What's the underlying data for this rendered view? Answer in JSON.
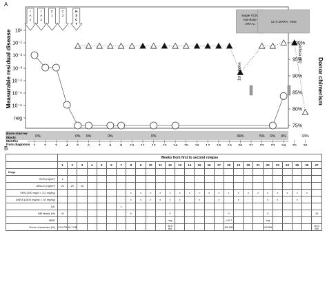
{
  "panels": {
    "a": "A",
    "b": "B"
  },
  "chart_data": {
    "type": "line",
    "title": "",
    "xlabel": "Months from diagnosis",
    "ylabel": "Measurable residual disease",
    "ylabel_right": "Donor chimerism",
    "x_ticks": [
      1,
      2,
      3,
      4,
      5,
      6,
      7,
      8,
      9,
      10,
      11,
      12,
      13,
      14,
      15,
      16,
      17,
      18,
      19,
      20,
      21,
      22,
      23,
      24,
      25,
      26
    ],
    "y_ticks_left": [
      "10¹",
      "10⁻¹",
      "10⁻²",
      "10⁻³",
      "10⁻⁴",
      "10⁻⁵",
      "10⁻⁶",
      "neg"
    ],
    "y_ticks_right": [
      "100%",
      "95%",
      "90%",
      "85%",
      "80%",
      "75%"
    ],
    "ylim_right": [
      75,
      100
    ],
    "series": [
      {
        "values": [
          {
            "x": 1,
            "y": "1e-2"
          },
          {
            "x": 2,
            "y": "1e-3"
          },
          {
            "x": 3,
            "y": "1e-3"
          },
          {
            "x": 4,
            "y": "1e-6"
          },
          {
            "x": 5,
            "y": "neg"
          },
          {
            "x": 6,
            "y": "neg"
          },
          {
            "x": 8,
            "y": "neg"
          },
          {
            "x": 9,
            "y": "neg"
          },
          {
            "x": 12,
            "y": "neg"
          },
          {
            "x": 14,
            "y": "neg"
          },
          {
            "x": 23,
            "y": "neg"
          },
          {
            "x": 24,
            "y": "5e-6"
          }
        ]
      },
      {
        "values": [
          {
            "x": 5,
            "y": 99,
            "filled": false
          },
          {
            "x": 6,
            "y": 99,
            "filled": false
          },
          {
            "x": 7,
            "y": 99,
            "filled": false
          },
          {
            "x": 8,
            "y": 99,
            "filled": false
          },
          {
            "x": 9,
            "y": 99,
            "filled": false
          },
          {
            "x": 10,
            "y": 99,
            "filled": false
          },
          {
            "x": 11,
            "y": 99,
            "filled": true
          },
          {
            "x": 12,
            "y": 99,
            "filled": false
          },
          {
            "x": 13,
            "y": 99,
            "filled": true
          },
          {
            "x": 14,
            "y": 99,
            "filled": false
          },
          {
            "x": 15,
            "y": 99,
            "filled": false
          },
          {
            "x": 16,
            "y": 99,
            "filled": true
          },
          {
            "x": 17,
            "y": 99,
            "filled": true
          },
          {
            "x": 18,
            "y": 99,
            "filled": true
          },
          {
            "x": 19,
            "y": 99,
            "filled": true
          },
          {
            "x": 20,
            "y": 91,
            "filled": true
          },
          {
            "x": 22,
            "y": 99,
            "filled": false
          },
          {
            "x": 23,
            "y": 99,
            "filled": false
          },
          {
            "x": 24,
            "y": 100,
            "filled": false
          },
          {
            "x": 25,
            "y": 100,
            "filled": true
          },
          {
            "x": 26,
            "y": 79,
            "filled": false
          }
        ]
      }
    ],
    "treatment_arrows": [
      {
        "x": 1,
        "label": "I A 1"
      },
      {
        "x": 2,
        "label": "I A 2"
      },
      {
        "x": 3,
        "label": "C 1"
      },
      {
        "x": 4,
        "label": "C 2"
      },
      {
        "x": 5,
        "label": "H S C T"
      }
    ],
    "treatment_boxes": [
      {
        "x_start": 20,
        "x_end": 21.8,
        "label": "single VCR, low-dose ARA-C"
      },
      {
        "x_start": 22,
        "x_end": 26,
        "label": "12 X DARA, VEN"
      }
    ],
    "annotations": [
      {
        "x": 20,
        "label": "1st relapse"
      },
      {
        "x": 26,
        "label": "2nd relapse"
      }
    ],
    "flow_markers": [
      {
        "x": 21
      },
      {
        "x": 24.5
      }
    ],
    "bm_blasts_label": "Bone marrow blasts",
    "bm_blasts": [
      {
        "x": 0.6,
        "value": "0%"
      },
      {
        "x": 5,
        "value": "0%"
      },
      {
        "x": 6,
        "value": "0%"
      },
      {
        "x": 8,
        "value": "0%"
      },
      {
        "x": 12,
        "value": "0%"
      },
      {
        "x": 20,
        "value": "34%"
      },
      {
        "x": 22,
        "value": "5%"
      },
      {
        "x": 23,
        "value": "0%"
      },
      {
        "x": 24,
        "value": "0%"
      },
      {
        "x": 26,
        "value": "33%"
      }
    ]
  },
  "table": {
    "title": "Weeks from first to second relapse",
    "drugs_label": "Drugs",
    "weeks": [
      "1",
      "2",
      "3",
      "4",
      "5",
      "6",
      "7",
      "8",
      "9",
      "10",
      "11",
      "12",
      "13",
      "14",
      "15",
      "16",
      "17",
      "18",
      "19",
      "20",
      "21",
      "22",
      "23",
      "24",
      "25",
      "26",
      "27"
    ],
    "rows": [
      {
        "label": "VCR (mg/m²)",
        "cells": {
          "1": "2"
        }
      },
      {
        "label": "ARA-C (mg/m²)",
        "cells": {
          "1": "20",
          "2": "20",
          "3": "20"
        }
      },
      {
        "label": "VEN (200 mg/d = 3.2 mg/kg)",
        "cells": {
          "8": "x",
          "9": "x",
          "10": "x",
          "11": "x",
          "12": "x",
          "13": "x",
          "14": "x",
          "15": "x",
          "16": "x",
          "17": "x",
          "18": "x",
          "19": "x",
          "20": "x",
          "21": "x",
          "22": "x",
          "23": "x",
          "24": "x",
          "25": "x",
          "26": "x"
        }
      },
      {
        "label": "DARA (1800 mg/wk = 16 mg/kg)",
        "cells": {
          "8": "x",
          "9": "x",
          "10": "x",
          "11": "x",
          "12": "x",
          "13": "x",
          "15": "x",
          "17": "x",
          "19": "x",
          "22": "x",
          "23": "x",
          "25": "x"
        }
      },
      {
        "label": "DLI",
        "cells": {
          "7": "x"
        }
      },
      {
        "label": "BM blasts (%)",
        "cells": {
          "1": "34",
          "8": "5",
          "12": "0",
          "18": "0",
          "22": "0",
          "27": "33"
        }
      },
      {
        "label": "MRD",
        "cells": {
          "12": "neg",
          "18": "<10⁻³",
          "22": "neg"
        }
      },
      {
        "label": "Donor chimerism (%)",
        "cells": {
          "1": "91.0 PB",
          "2": "99.7 PB",
          "12": "98.9 BM",
          "18": "100 BM",
          "22": "100 BM",
          "27": "80.0 BM"
        }
      }
    ]
  }
}
